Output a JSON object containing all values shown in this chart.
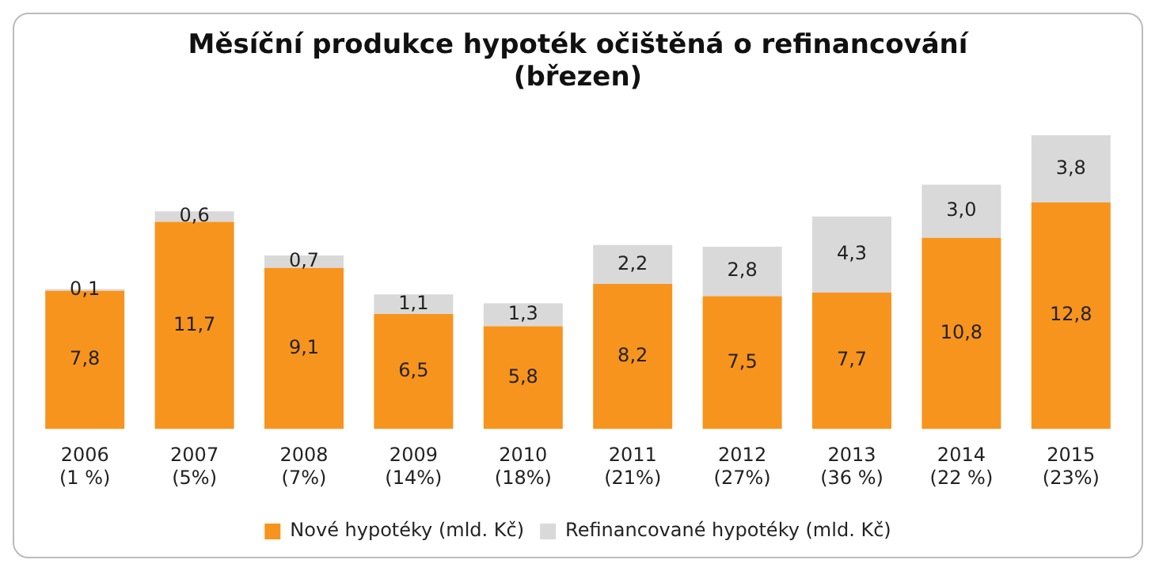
{
  "chart_data": {
    "type": "bar",
    "title": "Měsíční produkce hypoték očištěná o refinancování\n(březen)",
    "stacked": true,
    "legend": "bottom",
    "grid": false,
    "categories": [
      "2006\n(1 %)",
      "2007\n(5%)",
      "2008\n(7%)",
      "2009\n(14%)",
      "2010\n(18%)",
      "2011\n(21%)",
      "2012\n(27%)",
      "2013\n(36 %)",
      "2014\n(22 %)",
      "2015\n(23%)"
    ],
    "series": [
      {
        "name": "Nové hypotéky (mld. Kč)",
        "color": "#f7941d",
        "values": [
          7.8,
          11.7,
          9.1,
          6.5,
          5.8,
          8.2,
          7.5,
          7.7,
          10.8,
          12.8
        ],
        "value_labels": [
          "7,8",
          "11,7",
          "9,1",
          "6,5",
          "5,8",
          "8,2",
          "7,5",
          "7,7",
          "10,8",
          "12,8"
        ]
      },
      {
        "name": "Refinancované hypotéky (mld. Kč)",
        "color": "#d9d9d9",
        "values": [
          0.1,
          0.6,
          0.7,
          1.1,
          1.3,
          2.2,
          2.8,
          4.3,
          3.0,
          3.8
        ],
        "value_labels": [
          "0,1",
          "0,6",
          "0,7",
          "1,1",
          "1,3",
          "2,2",
          "2,8",
          "4,3",
          "3,0",
          "3,8"
        ]
      }
    ]
  }
}
